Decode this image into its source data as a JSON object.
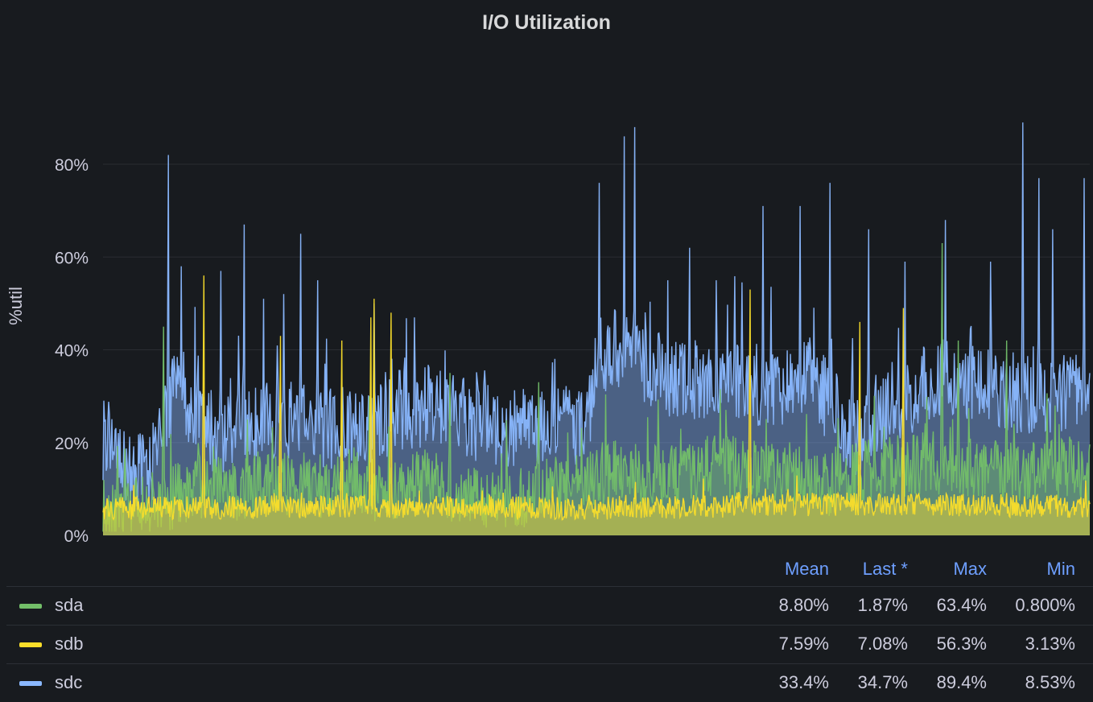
{
  "panel": {
    "title": "I/O Utilization"
  },
  "chart_data": {
    "type": "area",
    "ylabel": "%util",
    "ylim": [
      0,
      85
    ],
    "yticks": [
      "0%",
      "20%",
      "40%",
      "60%",
      "80%"
    ],
    "ytick_values": [
      0,
      20,
      40,
      60,
      80
    ],
    "grid": true,
    "xlim": [
      0,
      1223
    ],
    "series": [
      {
        "name": "sda",
        "color": "#73bf69",
        "profile": [
          [
            0,
            3
          ],
          [
            40,
            5
          ],
          [
            80,
            7
          ],
          [
            120,
            10
          ],
          [
            160,
            9
          ],
          [
            200,
            11
          ],
          [
            250,
            10
          ],
          [
            300,
            10
          ],
          [
            350,
            9
          ],
          [
            400,
            11
          ],
          [
            450,
            8
          ],
          [
            500,
            7
          ],
          [
            550,
            9
          ],
          [
            600,
            11
          ],
          [
            640,
            13
          ],
          [
            700,
            12
          ],
          [
            740,
            14
          ],
          [
            780,
            14
          ],
          [
            820,
            13
          ],
          [
            870,
            12
          ],
          [
            900,
            10
          ],
          [
            940,
            13
          ],
          [
            980,
            14
          ],
          [
            1020,
            15
          ],
          [
            1060,
            14
          ],
          [
            1100,
            13
          ],
          [
            1140,
            13
          ],
          [
            1180,
            14
          ],
          [
            1223,
            12
          ]
        ],
        "spikes": [
          [
            75,
            45
          ],
          [
            330,
            30
          ],
          [
            430,
            35
          ],
          [
            540,
            33
          ],
          [
            1040,
            63
          ],
          [
            1060,
            42
          ],
          [
            1120,
            42
          ],
          [
            1180,
            28
          ]
        ],
        "seed": 11,
        "jitter": 7
      },
      {
        "name": "sdb",
        "color": "#fade2a",
        "profile": [
          [
            0,
            5.5
          ],
          [
            300,
            6
          ],
          [
            600,
            5.5
          ],
          [
            900,
            6.5
          ],
          [
            1223,
            6
          ]
        ],
        "spikes": [
          [
            125,
            56
          ],
          [
            220,
            43
          ],
          [
            296,
            42
          ],
          [
            332,
            47
          ],
          [
            336,
            51
          ],
          [
            357,
            48
          ],
          [
            802,
            53
          ],
          [
            938,
            46
          ],
          [
            992,
            49
          ]
        ],
        "seed": 23,
        "jitter": 2.5
      },
      {
        "name": "sdc",
        "color": "#8ab8ff",
        "profile": [
          [
            0,
            20
          ],
          [
            20,
            18
          ],
          [
            40,
            12
          ],
          [
            60,
            13
          ],
          [
            80,
            28
          ],
          [
            100,
            30
          ],
          [
            120,
            24
          ],
          [
            150,
            20
          ],
          [
            180,
            22
          ],
          [
            220,
            24
          ],
          [
            260,
            23
          ],
          [
            300,
            22
          ],
          [
            340,
            24
          ],
          [
            370,
            26
          ],
          [
            400,
            27
          ],
          [
            440,
            25
          ],
          [
            480,
            23
          ],
          [
            520,
            22
          ],
          [
            560,
            23
          ],
          [
            600,
            22
          ],
          [
            610,
            37
          ],
          [
            640,
            40
          ],
          [
            680,
            35
          ],
          [
            720,
            32
          ],
          [
            760,
            33
          ],
          [
            800,
            32
          ],
          [
            840,
            31
          ],
          [
            880,
            33
          ],
          [
            900,
            28
          ],
          [
            930,
            20
          ],
          [
            960,
            26
          ],
          [
            1000,
            30
          ],
          [
            1040,
            33
          ],
          [
            1080,
            31
          ],
          [
            1120,
            30
          ],
          [
            1160,
            29
          ],
          [
            1200,
            31
          ],
          [
            1223,
            30
          ]
        ],
        "spikes": [
          [
            81,
            82
          ],
          [
            97,
            58
          ],
          [
            146,
            57
          ],
          [
            175,
            67
          ],
          [
            199,
            51
          ],
          [
            224,
            52
          ],
          [
            245,
            65
          ],
          [
            266,
            55
          ],
          [
            336,
            50
          ],
          [
            386,
            47
          ],
          [
            615,
            76
          ],
          [
            646,
            86
          ],
          [
            659,
            88
          ],
          [
            700,
            55
          ],
          [
            727,
            62
          ],
          [
            760,
            55
          ],
          [
            818,
            71
          ],
          [
            864,
            71
          ],
          [
            901,
            76
          ],
          [
            949,
            66
          ],
          [
            994,
            59
          ],
          [
            1044,
            68
          ],
          [
            1100,
            59
          ],
          [
            1140,
            89
          ],
          [
            1160,
            77
          ],
          [
            1177,
            66
          ],
          [
            1216,
            77
          ]
        ],
        "seed": 37,
        "jitter": 9
      }
    ],
    "legend": {
      "placement": "bottom",
      "columns": [
        "Mean",
        "Last *",
        "Max",
        "Min"
      ],
      "rows": [
        {
          "name": "sda",
          "mean": "8.80%",
          "last": "1.87%",
          "max": "63.4%",
          "min": "0.800%"
        },
        {
          "name": "sdb",
          "mean": "7.59%",
          "last": "7.08%",
          "max": "56.3%",
          "min": "3.13%"
        },
        {
          "name": "sdc",
          "mean": "33.4%",
          "last": "34.7%",
          "max": "89.4%",
          "min": "8.53%"
        }
      ]
    }
  }
}
